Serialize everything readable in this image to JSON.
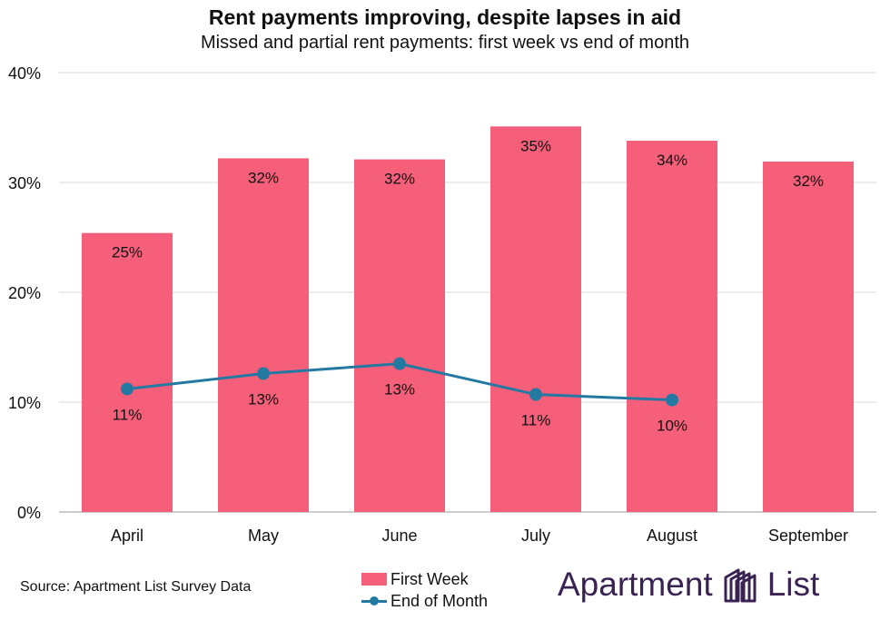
{
  "title": "Rent payments improving, despite lapses in aid",
  "subtitle": "Missed and partial rent payments: first week vs end of month",
  "colors": {
    "bar": "#f55f79",
    "line": "#2479a3",
    "grid": "#d9d9d9",
    "axis": "#999999",
    "text": "#111111",
    "brand": "#3a2352"
  },
  "chart_data": {
    "type": "bar",
    "title": "Rent payments improving, despite lapses in aid",
    "subtitle": "Missed and partial rent payments: first week vs end of month",
    "categories": [
      "April",
      "May",
      "June",
      "July",
      "August",
      "September"
    ],
    "ylim": [
      0,
      40
    ],
    "yticks": [
      0,
      10,
      20,
      30,
      40
    ],
    "ytick_labels": [
      "0%",
      "10%",
      "20%",
      "30%",
      "40%"
    ],
    "series": [
      {
        "name": "First Week",
        "type": "bar",
        "values": [
          25.4,
          32.2,
          32.1,
          35.1,
          33.8,
          31.9
        ],
        "labels": [
          "25%",
          "32%",
          "32%",
          "35%",
          "34%",
          "32%"
        ]
      },
      {
        "name": "End of Month",
        "type": "line",
        "values": [
          11.2,
          12.6,
          13.5,
          10.7,
          10.2,
          null
        ],
        "labels": [
          "11%",
          "13%",
          "13%",
          "11%",
          "10%",
          null
        ]
      }
    ],
    "legend": "bottom-center"
  },
  "source": "Source: Apartment List Survey Data",
  "legend": {
    "first_week": "First Week",
    "end_of_month": "End of Month"
  },
  "logo": {
    "left": "Apartment",
    "right": "List",
    "icon": "apartment-list-logo-icon"
  }
}
